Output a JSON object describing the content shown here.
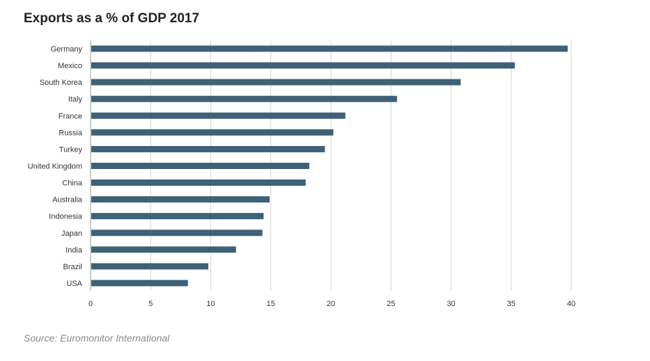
{
  "title": "Exports as a % of GDP 2017",
  "source": "Source: Euromonitor International",
  "colors": {
    "bar": "#3d6176",
    "grid": "#d4d4d4",
    "axis": "#999999"
  },
  "chart_data": {
    "type": "bar",
    "orientation": "horizontal",
    "title": "Exports as a % of GDP 2017",
    "categories": [
      "Germany",
      "Mexico",
      "South Korea",
      "Italy",
      "France",
      "Russia",
      "Turkey",
      "United Kingdom",
      "China",
      "Australia",
      "Indonesia",
      "Japan",
      "India",
      "Brazil",
      "USA"
    ],
    "values": [
      39.7,
      35.3,
      30.8,
      25.5,
      21.2,
      20.2,
      19.5,
      18.2,
      17.9,
      14.9,
      14.4,
      14.3,
      12.1,
      9.8,
      8.1
    ],
    "xlim": [
      0,
      40
    ],
    "xticks": [
      0,
      5,
      10,
      15,
      20,
      25,
      30,
      35,
      40
    ],
    "grid": true,
    "legend": "none"
  }
}
